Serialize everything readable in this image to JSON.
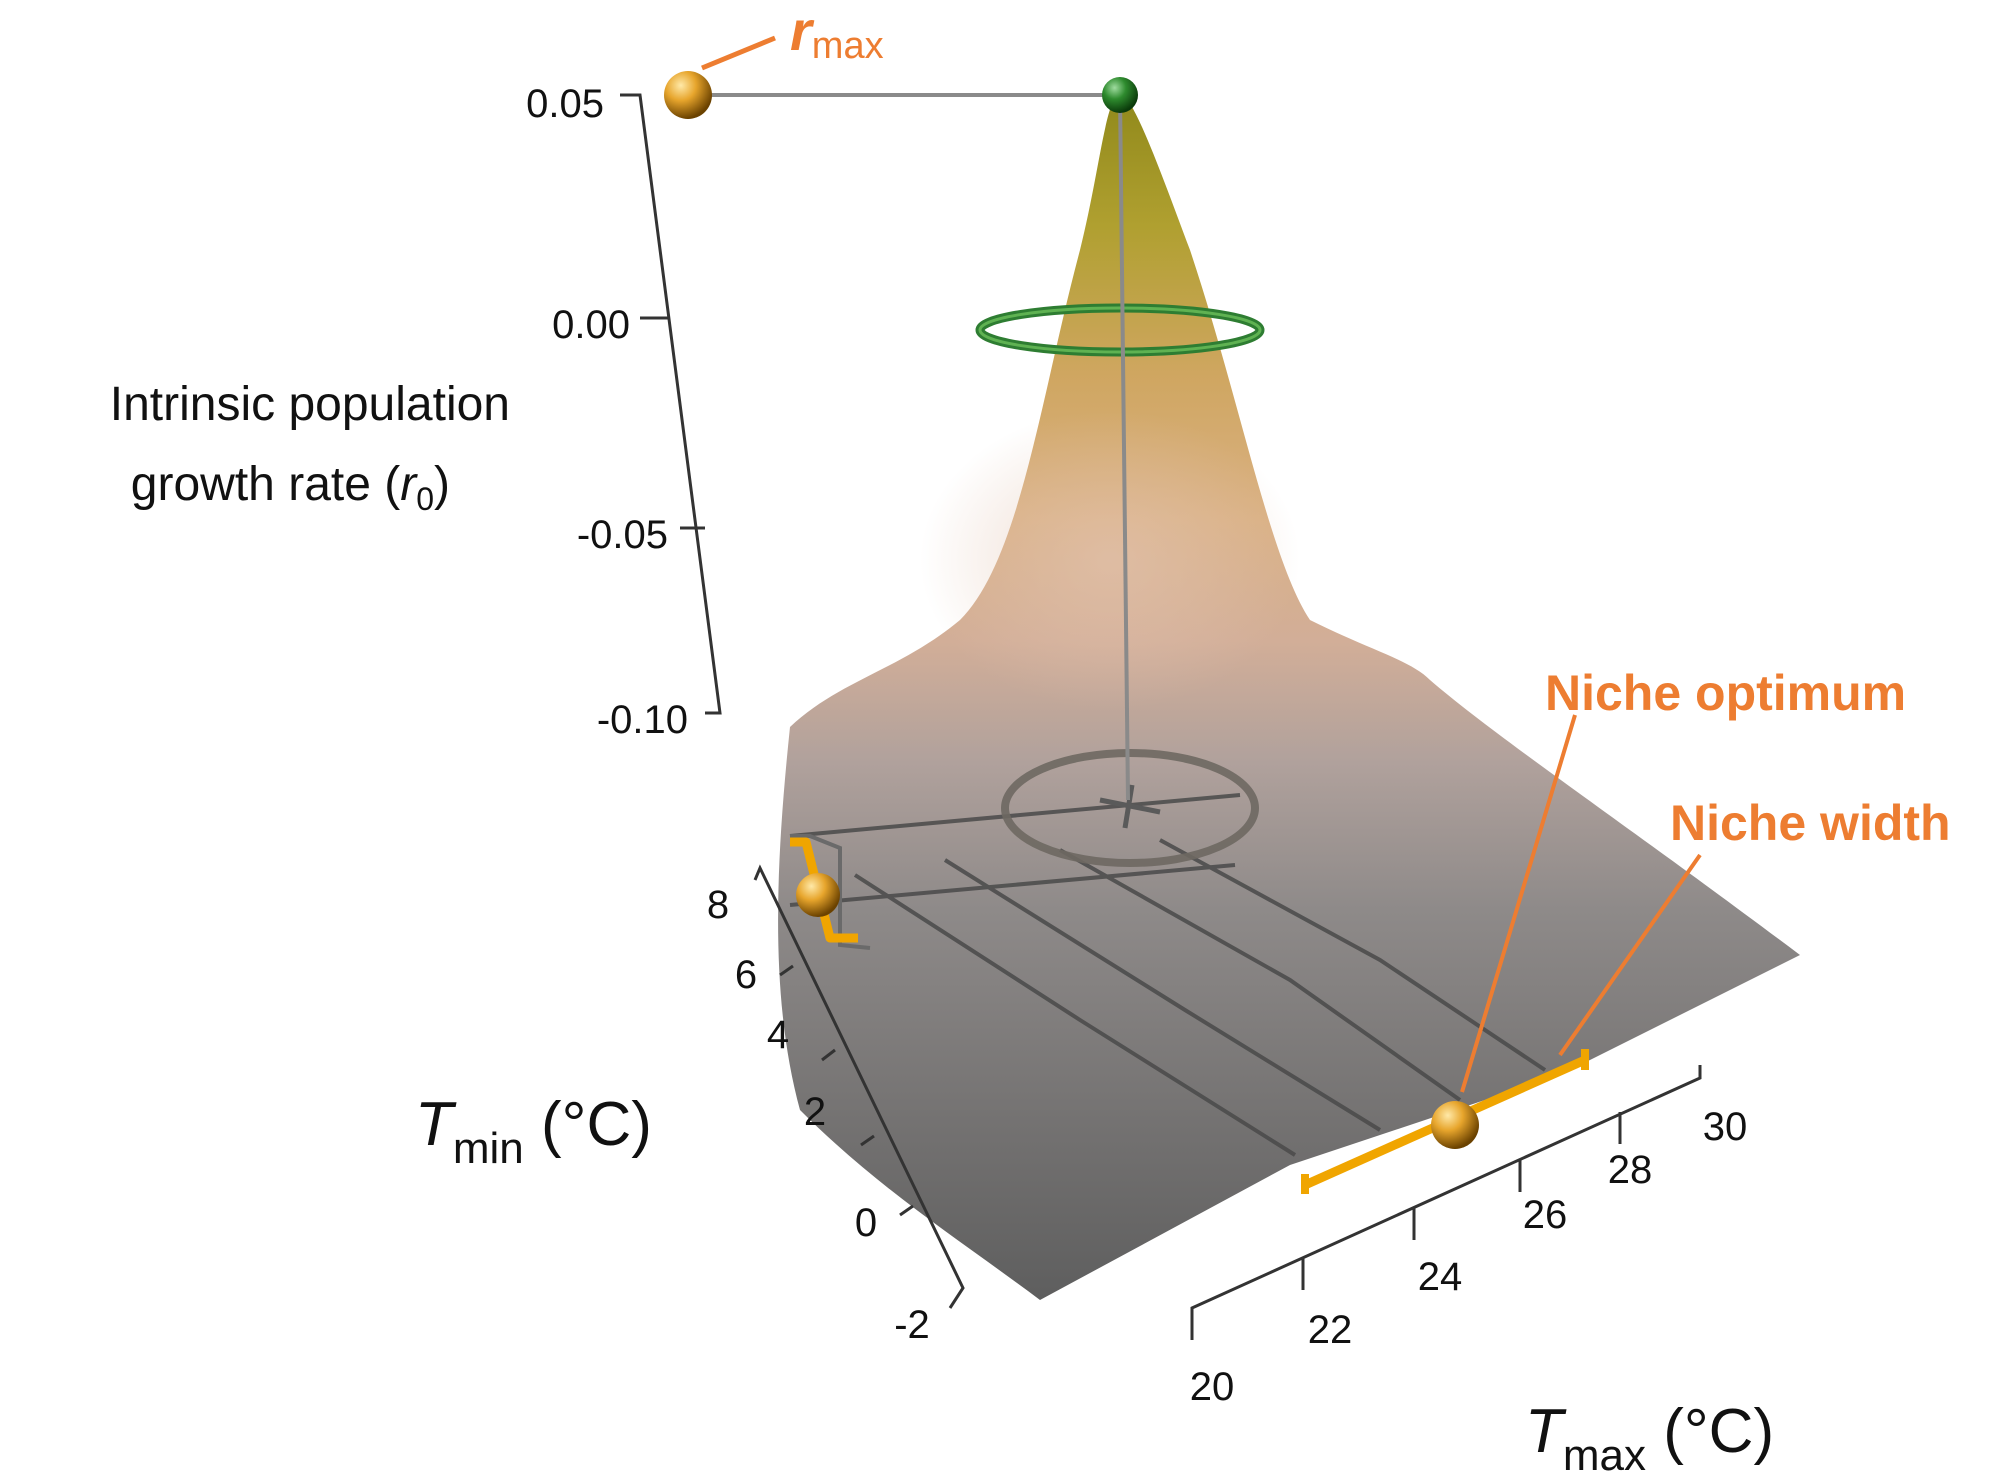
{
  "chart_data": {
    "type": "surface-3d",
    "z_axis": {
      "label_line1": "Intrinsic population",
      "label_line2_prefix": "growth rate (",
      "label_symbol": "r",
      "label_subscript": "0",
      "label_suffix": ")",
      "ticks": [
        "0.05",
        "0.00",
        "-0.05",
        "-0.10"
      ],
      "tick_values": [
        0.05,
        0.0,
        -0.05,
        -0.1
      ],
      "range": [
        -0.1,
        0.05
      ]
    },
    "tmin_axis": {
      "symbol": "T",
      "subscript": "min",
      "unit": " (°C)",
      "ticks": [
        "8",
        "6",
        "4",
        "2",
        "0",
        "-2"
      ],
      "tick_values": [
        8,
        6,
        4,
        2,
        0,
        -2
      ],
      "range": [
        -2,
        8
      ]
    },
    "tmax_axis": {
      "symbol": "T",
      "subscript": "max",
      "unit": " (°C)",
      "ticks": [
        "20",
        "22",
        "24",
        "26",
        "28",
        "30"
      ],
      "tick_values": [
        20,
        22,
        24,
        26,
        28,
        30
      ],
      "range": [
        20,
        30
      ]
    },
    "annotations": {
      "rmax_symbol": "r",
      "rmax_subscript": "max",
      "niche_optimum": "Niche optimum",
      "niche_width": "Niche width"
    },
    "peak": {
      "r0": 0.05,
      "tmax": 24.5,
      "tmin": 7
    },
    "colors": {
      "annotation": "#ed7d31",
      "highlight_bar": "#f0a500",
      "peak_ring": "#2e7d32",
      "surface_low": "#707070",
      "surface_high": "#b3a030"
    }
  }
}
